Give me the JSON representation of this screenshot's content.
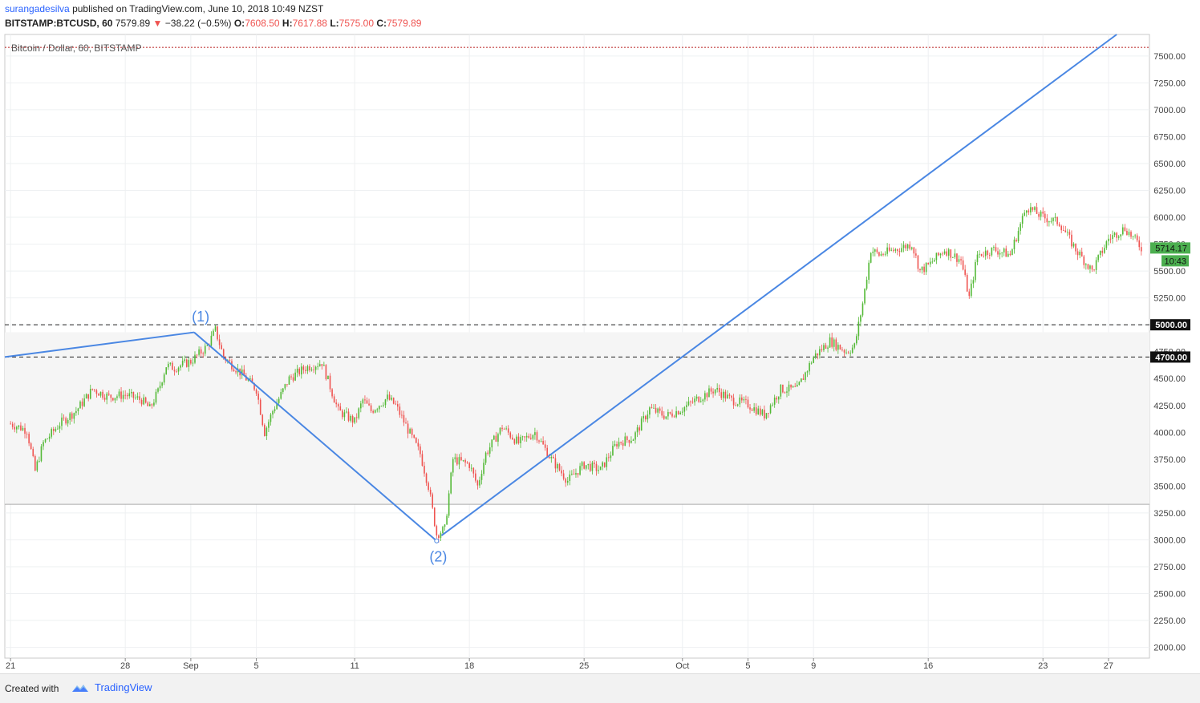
{
  "header": {
    "author": "surangadesilva",
    "published_text": "published on TradingView.com, June 10, 2018 10:49 NZST"
  },
  "symbol_line": {
    "symbol": "BITSTAMP:BTCUSD, 60",
    "last": "7579.89",
    "change": "−38.22 (−0.5%)",
    "o_label": "O:",
    "o": "7608.50",
    "h_label": "H:",
    "h": "7617.88",
    "l_label": "L:",
    "l": "7575.00",
    "c_label": "C:",
    "c": "7579.89",
    "down_color": "#ef5350"
  },
  "footer": {
    "created_with": "Created with",
    "brand": "TradingView",
    "brand_icon": "tradingview-cloud-icon"
  },
  "chart_data": {
    "type": "candlestick",
    "legend_title": "Bitcoin / Dollar, 60, BITSTAMP",
    "ylim": [
      1900,
      7700
    ],
    "y_ticks": [
      "7500.00",
      "7250.00",
      "7000.00",
      "6750.00",
      "6500.00",
      "6250.00",
      "6000.00",
      "5750.00",
      "5500.00",
      "5250.00",
      "5000.00",
      "4750.00",
      "4500.00",
      "4250.00",
      "4000.00",
      "3750.00",
      "3500.00",
      "3250.00",
      "3000.00",
      "2750.00",
      "2500.00",
      "2250.00",
      "2000.00"
    ],
    "x_ticks": [
      {
        "label": "21",
        "day": 0
      },
      {
        "label": "28",
        "day": 7
      },
      {
        "label": "Sep",
        "day": 11
      },
      {
        "label": "5",
        "day": 15
      },
      {
        "label": "11",
        "day": 21
      },
      {
        "label": "18",
        "day": 28
      },
      {
        "label": "25",
        "day": 35
      },
      {
        "label": "Oct",
        "day": 41
      },
      {
        "label": "5",
        "day": 45
      },
      {
        "label": "9",
        "day": 49
      },
      {
        "label": "16",
        "day": 56
      },
      {
        "label": "23",
        "day": 63
      },
      {
        "label": "27",
        "day": 67
      }
    ],
    "x_range_days": [
      -0.35,
      69.5
    ],
    "price_points": [
      [
        0,
        4080
      ],
      [
        1,
        4020
      ],
      [
        1.5,
        3640
      ],
      [
        2,
        3900
      ],
      [
        3,
        4080
      ],
      [
        4,
        4200
      ],
      [
        5,
        4400
      ],
      [
        6,
        4330
      ],
      [
        7,
        4350
      ],
      [
        8,
        4300
      ],
      [
        8.5,
        4220
      ],
      [
        9,
        4380
      ],
      [
        9.5,
        4620
      ],
      [
        10,
        4600
      ],
      [
        11,
        4660
      ],
      [
        12,
        4800
      ],
      [
        12.5,
        4950
      ],
      [
        13,
        4700
      ],
      [
        14,
        4560
      ],
      [
        15,
        4400
      ],
      [
        15.5,
        4000
      ],
      [
        16,
        4200
      ],
      [
        17,
        4500
      ],
      [
        18,
        4600
      ],
      [
        19,
        4650
      ],
      [
        20,
        4200
      ],
      [
        21,
        4100
      ],
      [
        21.5,
        4300
      ],
      [
        22,
        4200
      ],
      [
        23,
        4320
      ],
      [
        23.5,
        4250
      ],
      [
        24,
        4100
      ],
      [
        25,
        3800
      ],
      [
        25.5,
        3500
      ],
      [
        26,
        3050
      ],
      [
        26.5,
        3100
      ],
      [
        27,
        3750
      ],
      [
        28,
        3700
      ],
      [
        28.5,
        3500
      ],
      [
        29,
        3800
      ],
      [
        30,
        4050
      ],
      [
        31,
        3900
      ],
      [
        32,
        4000
      ],
      [
        33,
        3750
      ],
      [
        34,
        3550
      ],
      [
        35,
        3700
      ],
      [
        36,
        3650
      ],
      [
        37,
        3900
      ],
      [
        38,
        3950
      ],
      [
        39,
        4220
      ],
      [
        40,
        4150
      ],
      [
        41,
        4220
      ],
      [
        42,
        4320
      ],
      [
        43,
        4400
      ],
      [
        44,
        4300
      ],
      [
        45,
        4260
      ],
      [
        46,
        4160
      ],
      [
        47,
        4400
      ],
      [
        48,
        4400
      ],
      [
        49,
        4700
      ],
      [
        50,
        4850
      ],
      [
        51,
        4750
      ],
      [
        51.5,
        4800
      ],
      [
        52,
        5200
      ],
      [
        52.5,
        5700
      ],
      [
        53,
        5650
      ],
      [
        54,
        5700
      ],
      [
        55,
        5750
      ],
      [
        55.5,
        5500
      ],
      [
        56,
        5550
      ],
      [
        57,
        5700
      ],
      [
        58,
        5600
      ],
      [
        58.5,
        5250
      ],
      [
        59,
        5650
      ],
      [
        60,
        5700
      ],
      [
        61,
        5650
      ],
      [
        62,
        6100
      ],
      [
        63,
        6000
      ],
      [
        64,
        5950
      ],
      [
        65,
        5700
      ],
      [
        66,
        5500
      ],
      [
        67,
        5800
      ],
      [
        68,
        5900
      ],
      [
        69,
        5720
      ]
    ],
    "current_price_label": "5714.17",
    "countdown_label": "10:43",
    "horizontal_lines": [
      {
        "price": 5000,
        "label": "5000.00",
        "style": "dashed"
      },
      {
        "price": 4700,
        "label": "4700.00",
        "style": "dashed"
      },
      {
        "price": 7580,
        "style": "dotted",
        "color": "#b71c1c"
      },
      {
        "price": 3330,
        "style": "solid",
        "color": "#aaaaaa"
      }
    ],
    "shaded_band": [
      3330,
      4930
    ],
    "wave_lines": [
      [
        [
          -0.35,
          4700
        ],
        [
          11.2,
          4930
        ]
      ],
      [
        [
          11.2,
          4930
        ],
        [
          26.0,
          2990
        ]
      ],
      [
        [
          26.3,
          3040
        ],
        [
          67.5,
          7700
        ]
      ]
    ],
    "wave_labels": [
      {
        "text": "(1)",
        "day": 11.6,
        "price": 5030
      },
      {
        "text": "(2)",
        "day": 26.1,
        "price": 2800
      }
    ],
    "colors": {
      "up": "#26a69a",
      "up_candle": "#53b936",
      "down": "#ef5350",
      "wave": "#4a87e3",
      "last_bg": "#4caf50"
    }
  }
}
